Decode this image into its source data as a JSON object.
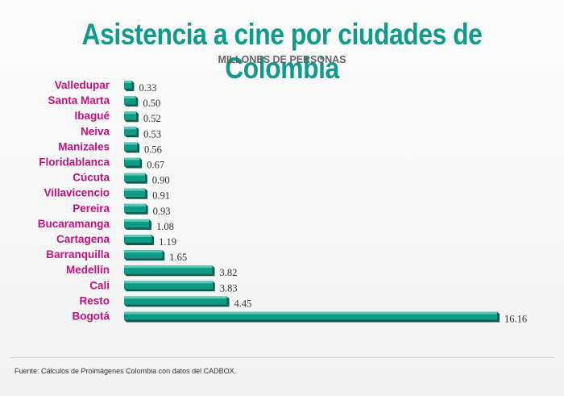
{
  "source": "Fuente: Cálculos de Proimágenes Colombia con datos del CADBOX.",
  "chart_data": {
    "type": "bar",
    "orientation": "horizontal",
    "title": "Asistencia a cine por ciudades de Colombia",
    "subtitle": "MILLONES DE PERSONAS",
    "categories": [
      "Valledupar",
      "Santa Marta",
      "Ibagué",
      "Neiva",
      "Manizales",
      "Floridablanca",
      "Cúcuta",
      "Villavicencio",
      "Pereira",
      "Bucaramanga",
      "Cartagena",
      "Barranquilla",
      "Medellín",
      "Cali",
      "Resto",
      "Bogotá"
    ],
    "values": [
      0.33,
      0.5,
      0.52,
      0.53,
      0.56,
      0.67,
      0.9,
      0.91,
      0.93,
      1.08,
      1.19,
      1.65,
      3.82,
      3.83,
      4.45,
      16.16
    ],
    "value_labels": [
      "0.33",
      "0.50",
      "0.52",
      "0.53",
      "0.56",
      "0.67",
      "0.90",
      "0.91",
      "0.93",
      "1.08",
      "1.19",
      "1.65",
      "3.82",
      "3.83",
      "4.45",
      "16.16"
    ],
    "xlim": [
      0,
      16.16
    ],
    "grid": false,
    "legend": "none",
    "colors": {
      "bar_front": "#0e9a85",
      "bar_top": "#57c9b6",
      "bar_shadow": "#0a5d52",
      "category_label": "#c3127e",
      "title": "#0f9a8e"
    }
  }
}
